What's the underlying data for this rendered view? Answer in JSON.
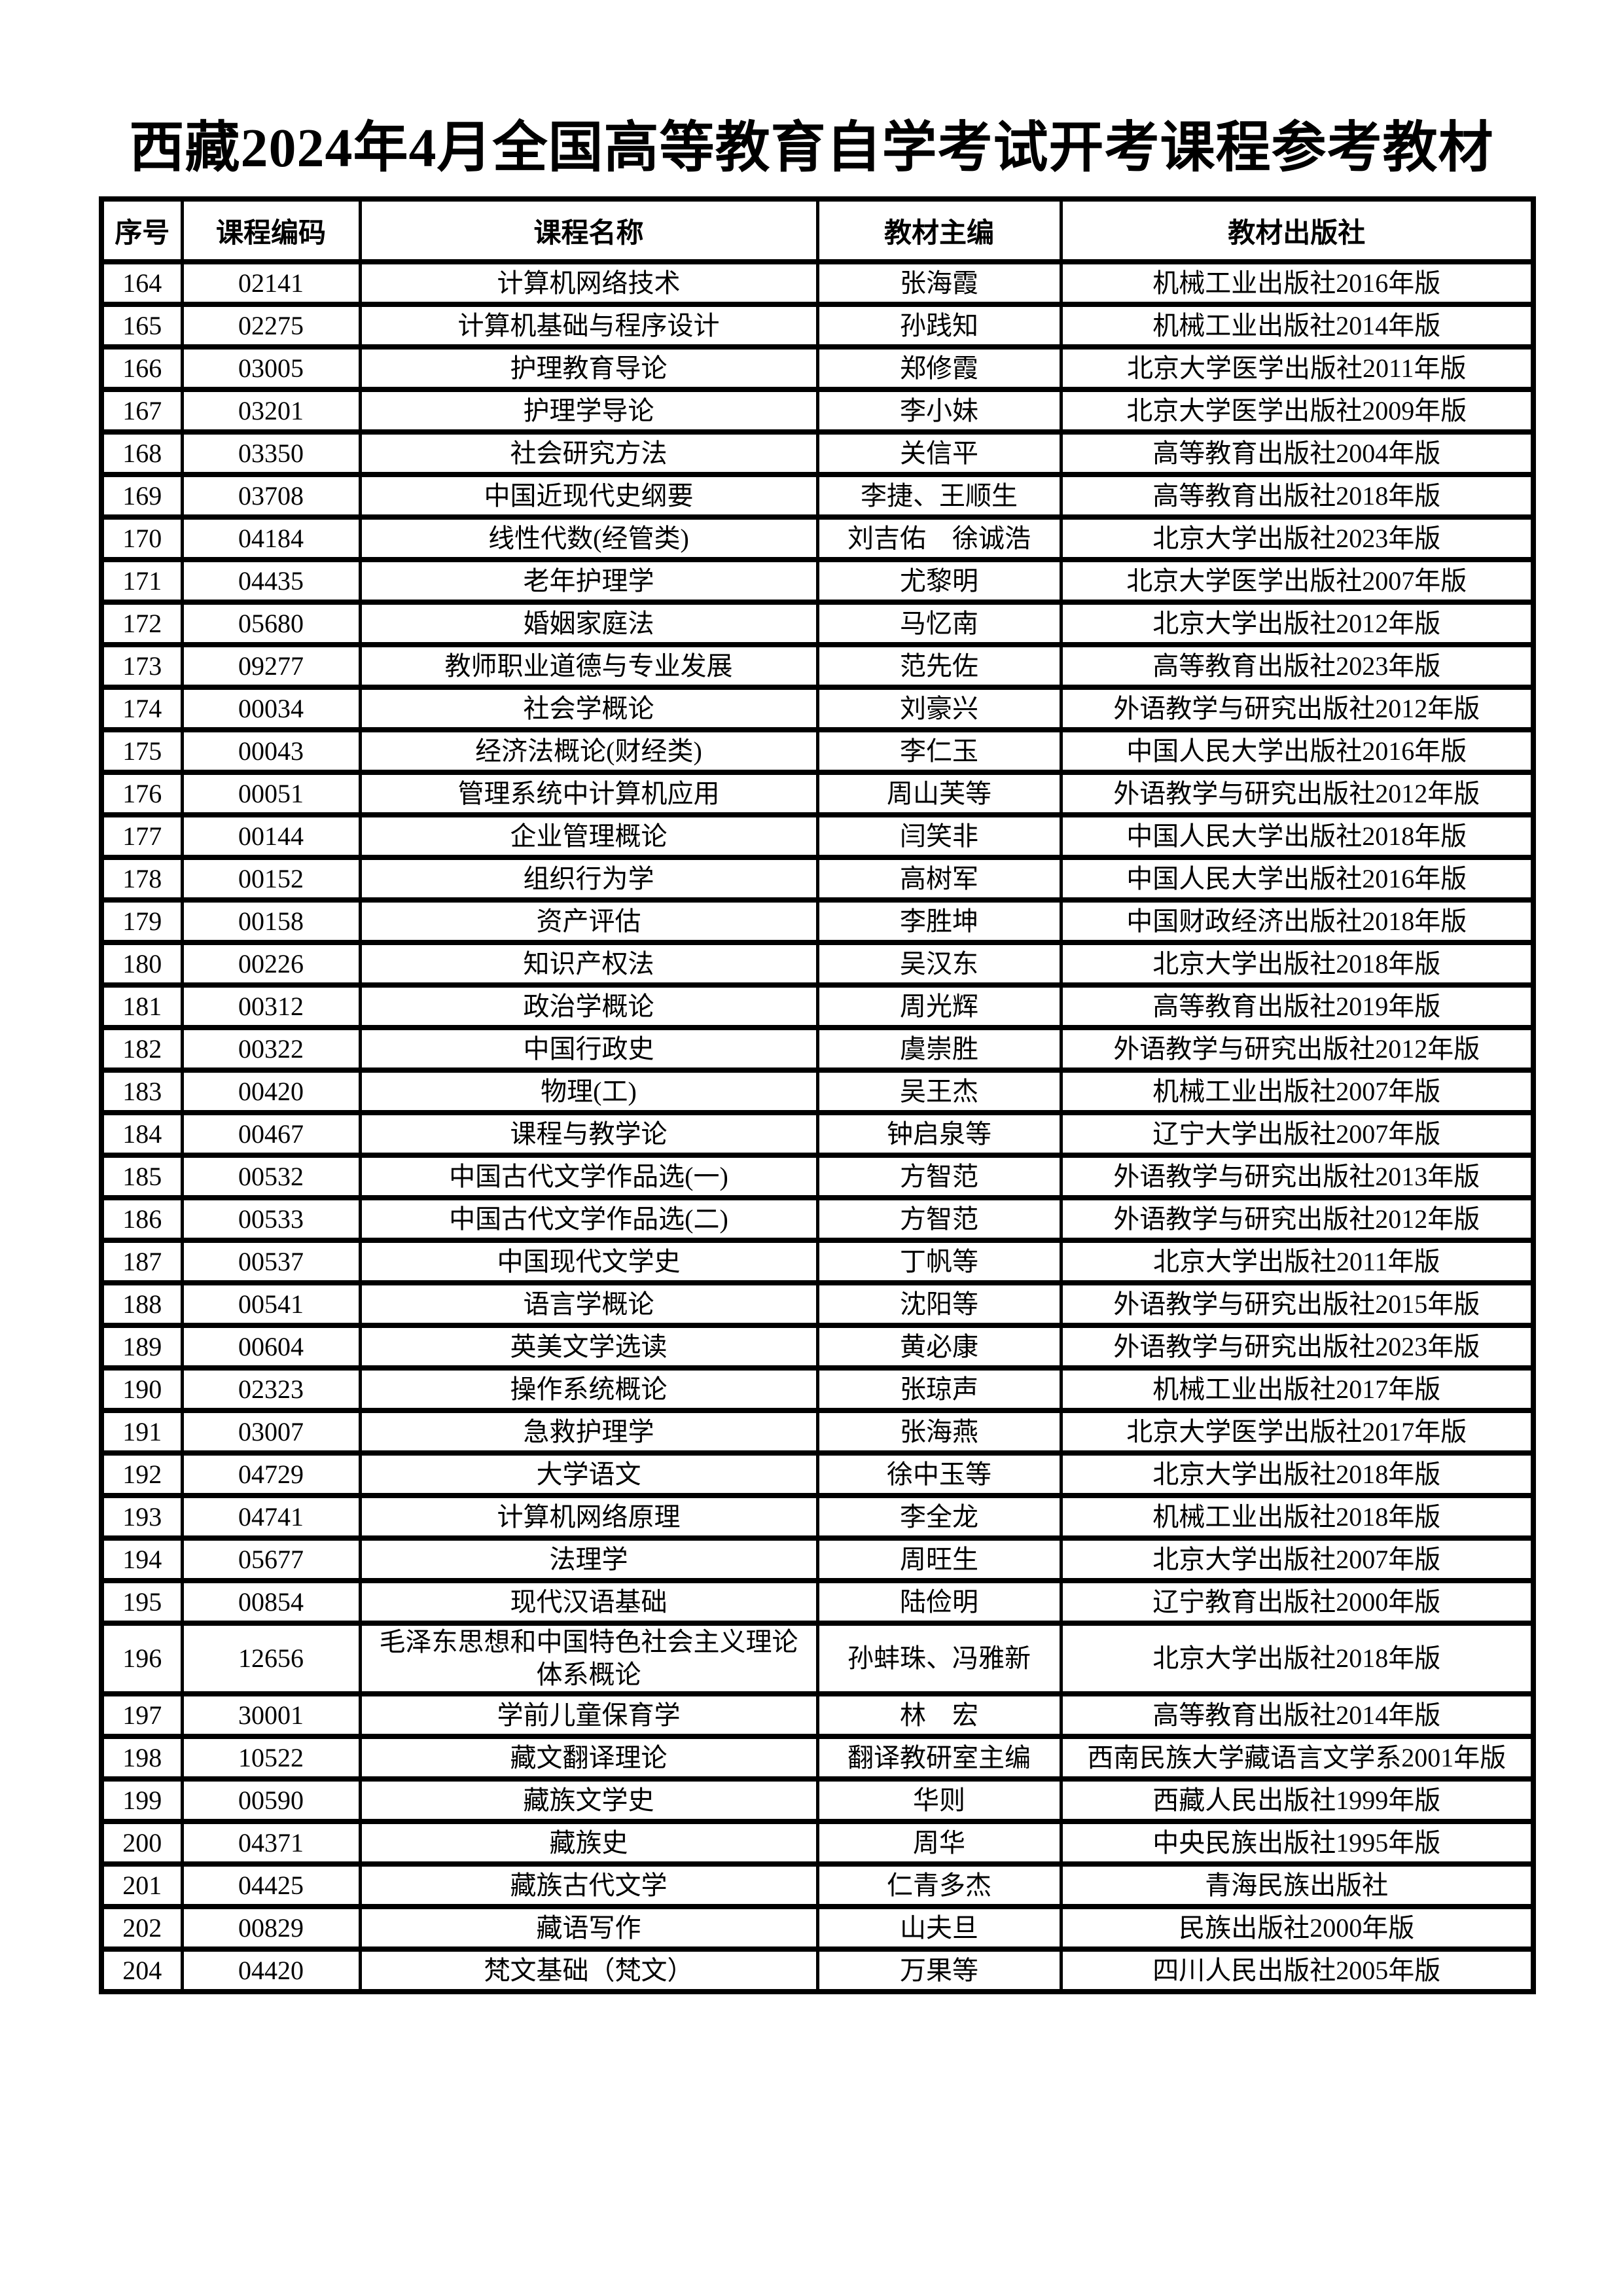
{
  "title": "西藏2024年4月全国高等教育自学考试开考课程参考教材",
  "colors": {
    "text": "#000000",
    "background": "#ffffff",
    "table_border": "#000000"
  },
  "table": {
    "headers": [
      "序号",
      "课程编码",
      "课程名称",
      "教材主编",
      "教材出版社"
    ],
    "rows": [
      {
        "seq": "164",
        "code": "02141",
        "course": "计算机网络技术",
        "editor": "张海霞",
        "publisher": "机械工业出版社2016年版"
      },
      {
        "seq": "165",
        "code": "02275",
        "course": "计算机基础与程序设计",
        "editor": "孙践知",
        "publisher": "机械工业出版社2014年版"
      },
      {
        "seq": "166",
        "code": "03005",
        "course": "护理教育导论",
        "editor": "郑修霞",
        "publisher": "北京大学医学出版社2011年版"
      },
      {
        "seq": "167",
        "code": "03201",
        "course": "护理学导论",
        "editor": "李小妹",
        "publisher": "北京大学医学出版社2009年版"
      },
      {
        "seq": "168",
        "code": "03350",
        "course": "社会研究方法",
        "editor": "关信平",
        "publisher": "高等教育出版社2004年版"
      },
      {
        "seq": "169",
        "code": "03708",
        "course": "中国近现代史纲要",
        "editor": "李捷、王顺生",
        "publisher": "高等教育出版社2018年版"
      },
      {
        "seq": "170",
        "code": "04184",
        "course": "线性代数(经管类)",
        "editor": "刘吉佑　徐诚浩",
        "publisher": "北京大学出版社2023年版"
      },
      {
        "seq": "171",
        "code": "04435",
        "course": "老年护理学",
        "editor": "尤黎明",
        "publisher": "北京大学医学出版社2007年版"
      },
      {
        "seq": "172",
        "code": "05680",
        "course": "婚姻家庭法",
        "editor": "马忆南",
        "publisher": "北京大学出版社2012年版"
      },
      {
        "seq": "173",
        "code": "09277",
        "course": "教师职业道德与专业发展",
        "editor": "范先佐",
        "publisher": "高等教育出版社2023年版"
      },
      {
        "seq": "174",
        "code": "00034",
        "course": "社会学概论",
        "editor": "刘豪兴",
        "publisher": "外语教学与研究出版社2012年版"
      },
      {
        "seq": "175",
        "code": "00043",
        "course": "经济法概论(财经类)",
        "editor": "李仁玉",
        "publisher": "中国人民大学出版社2016年版"
      },
      {
        "seq": "176",
        "code": "00051",
        "course": "管理系统中计算机应用",
        "editor": "周山芙等",
        "publisher": "外语教学与研究出版社2012年版"
      },
      {
        "seq": "177",
        "code": "00144",
        "course": "企业管理概论",
        "editor": "闫笑非",
        "publisher": "中国人民大学出版社2018年版"
      },
      {
        "seq": "178",
        "code": "00152",
        "course": "组织行为学",
        "editor": "高树军",
        "publisher": "中国人民大学出版社2016年版"
      },
      {
        "seq": "179",
        "code": "00158",
        "course": "资产评估",
        "editor": "李胜坤",
        "publisher": "中国财政经济出版社2018年版"
      },
      {
        "seq": "180",
        "code": "00226",
        "course": "知识产权法",
        "editor": "吴汉东",
        "publisher": "北京大学出版社2018年版"
      },
      {
        "seq": "181",
        "code": "00312",
        "course": "政治学概论",
        "editor": "周光辉",
        "publisher": "高等教育出版社2019年版"
      },
      {
        "seq": "182",
        "code": "00322",
        "course": "中国行政史",
        "editor": "虞崇胜",
        "publisher": "外语教学与研究出版社2012年版"
      },
      {
        "seq": "183",
        "code": "00420",
        "course": "物理(工)",
        "editor": "吴王杰",
        "publisher": "机械工业出版社2007年版"
      },
      {
        "seq": "184",
        "code": "00467",
        "course": "课程与教学论",
        "editor": "钟启泉等",
        "publisher": "辽宁大学出版社2007年版"
      },
      {
        "seq": "185",
        "code": "00532",
        "course": "中国古代文学作品选(一)",
        "editor": "方智范",
        "publisher": "外语教学与研究出版社2013年版"
      },
      {
        "seq": "186",
        "code": "00533",
        "course": "中国古代文学作品选(二)",
        "editor": "方智范",
        "publisher": "外语教学与研究出版社2012年版"
      },
      {
        "seq": "187",
        "code": "00537",
        "course": "中国现代文学史",
        "editor": "丁帆等",
        "publisher": "北京大学出版社2011年版"
      },
      {
        "seq": "188",
        "code": "00541",
        "course": "语言学概论",
        "editor": "沈阳等",
        "publisher": "外语教学与研究出版社2015年版"
      },
      {
        "seq": "189",
        "code": "00604",
        "course": "英美文学选读",
        "editor": "黄必康",
        "publisher": "外语教学与研究出版社2023年版"
      },
      {
        "seq": "190",
        "code": "02323",
        "course": "操作系统概论",
        "editor": "张琼声",
        "publisher": "机械工业出版社2017年版"
      },
      {
        "seq": "191",
        "code": "03007",
        "course": "急救护理学",
        "editor": "张海燕",
        "publisher": "北京大学医学出版社2017年版"
      },
      {
        "seq": "192",
        "code": "04729",
        "course": "大学语文",
        "editor": "徐中玉等",
        "publisher": "北京大学出版社2018年版"
      },
      {
        "seq": "193",
        "code": "04741",
        "course": "计算机网络原理",
        "editor": "李全龙",
        "publisher": "机械工业出版社2018年版"
      },
      {
        "seq": "194",
        "code": "05677",
        "course": "法理学",
        "editor": "周旺生",
        "publisher": "北京大学出版社2007年版"
      },
      {
        "seq": "195",
        "code": "00854",
        "course": "现代汉语基础",
        "editor": "陆俭明",
        "publisher": "辽宁教育出版社2000年版"
      },
      {
        "seq": "196",
        "code": "12656",
        "course": "毛泽东思想和中国特色社会主义理论体系概论",
        "editor": "孙蚌珠、冯雅新",
        "publisher": "北京大学出版社2018年版"
      },
      {
        "seq": "197",
        "code": "30001",
        "course": "学前儿童保育学",
        "editor": "林　宏",
        "publisher": "高等教育出版社2014年版"
      },
      {
        "seq": "198",
        "code": "10522",
        "course": "藏文翻译理论",
        "editor": "翻译教研室主编",
        "publisher": "西南民族大学藏语言文学系2001年版"
      },
      {
        "seq": "199",
        "code": "00590",
        "course": "藏族文学史",
        "editor": "华则",
        "publisher": "西藏人民出版社1999年版"
      },
      {
        "seq": "200",
        "code": "04371",
        "course": "藏族史",
        "editor": "周华",
        "publisher": "中央民族出版社1995年版"
      },
      {
        "seq": "201",
        "code": "04425",
        "course": "藏族古代文学",
        "editor": "仁青多杰",
        "publisher": "青海民族出版社"
      },
      {
        "seq": "202",
        "code": "00829",
        "course": "藏语写作",
        "editor": "山夫旦",
        "publisher": "民族出版社2000年版"
      },
      {
        "seq": "204",
        "code": "04420",
        "course": "梵文基础（梵文）",
        "editor": "万果等",
        "publisher": "四川人民出版社2005年版"
      }
    ]
  }
}
